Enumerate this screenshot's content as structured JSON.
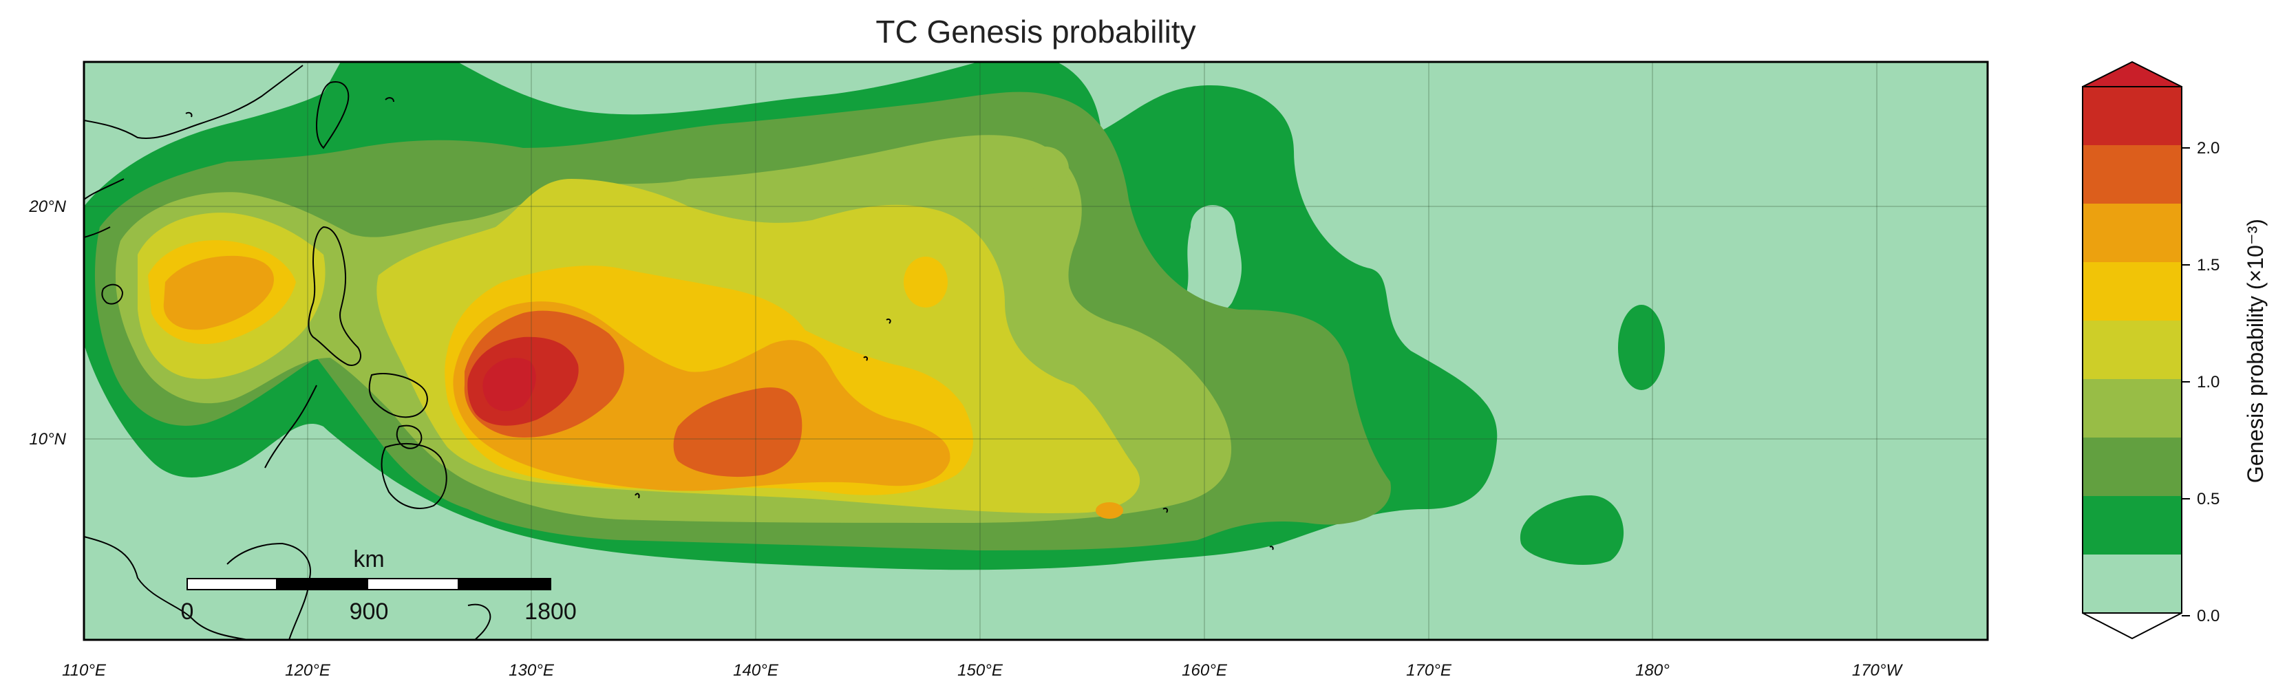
{
  "title": "TC Genesis probability",
  "lon_labels": [
    "110°E",
    "120°E",
    "130°E",
    "140°E",
    "150°E",
    "160°E",
    "170°E",
    "180°",
    "170°W"
  ],
  "lat_labels": [
    "20°N",
    "10°N"
  ],
  "colorbar": {
    "label": "Genesis probability (×10⁻³)",
    "tick_labels": [
      "0.0",
      "0.5",
      "1.0",
      "1.5",
      "2.0"
    ],
    "extend": "both",
    "levels": [
      0.0,
      0.25,
      0.5,
      0.75,
      1.0,
      1.25,
      1.5,
      1.75,
      2.0,
      2.25
    ],
    "colors": [
      "#a0dab4",
      "#12a03c",
      "#62a040",
      "#98bd46",
      "#cece28",
      "#f1c407",
      "#eca10f",
      "#dc5e1c",
      "#ca2a22",
      "#c91f29"
    ],
    "under_color": "#ffffff"
  },
  "scalebar": {
    "unit": "km",
    "tick_labels": [
      "0",
      "900",
      "1800"
    ]
  },
  "map": {
    "region": "Western North Pacific",
    "lon_range": [
      "110°E",
      "175°W"
    ],
    "lat_range": [
      "2°N",
      "26°N"
    ],
    "grid": true,
    "ocean_background_color": "#a0dab4"
  }
}
